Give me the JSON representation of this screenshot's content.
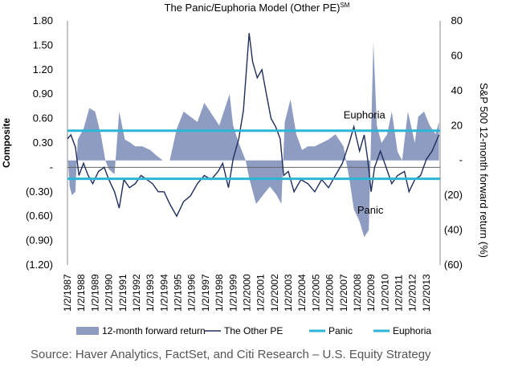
{
  "chart_data": {
    "type": "area+line",
    "title": "The Panic/Euphoria Model (Other PE)",
    "title_superscript": "SM",
    "left_axis": {
      "label": "Composite",
      "range": [
        -1.2,
        1.8
      ],
      "ticks": [
        1.8,
        1.5,
        1.2,
        0.9,
        0.6,
        0.3,
        0,
        -0.3,
        -0.6,
        -0.9,
        -1.2
      ],
      "tick_labels": [
        "1.80",
        "1.50",
        "1.20",
        "0.90",
        "0.60",
        "0.30",
        "-",
        "(0.30)",
        "(0.60)",
        "(0.90)",
        "(1.20)"
      ]
    },
    "right_axis": {
      "label": "S&P 500 12-month forward return (%)",
      "range": [
        -60,
        80
      ],
      "ticks": [
        80,
        60,
        40,
        20,
        0,
        -20,
        -40,
        -60
      ],
      "tick_labels": [
        "80",
        "60",
        "40",
        "20",
        "-",
        "(20)",
        "(40)",
        "(60)"
      ]
    },
    "x_axis": {
      "range": [
        "1987-01-02",
        "2013-12-31"
      ],
      "tick_labels": [
        "1/2/1987",
        "1/2/1988",
        "1/2/1989",
        "1/2/1990",
        "1/2/1991",
        "1/2/1992",
        "1/2/1993",
        "1/2/1994",
        "1/2/1995",
        "1/2/1996",
        "1/2/1997",
        "1/2/1998",
        "1/2/1999",
        "1/2/2000",
        "1/2/2001",
        "1/2/2002",
        "1/2/2003",
        "1/2/2004",
        "1/2/2005",
        "1/2/2006",
        "1/2/2007",
        "1/2/2008",
        "1/2/2009",
        "1/2/2010",
        "1/2/2011",
        "1/2/2012",
        "1/2/2013"
      ]
    },
    "panic_level": -0.14,
    "euphoria_level": 0.45,
    "annotations": [
      {
        "text": "Euphoria",
        "x": "2007-01-01",
        "y": 0.6
      },
      {
        "text": "Panic",
        "x": "2008-01-01",
        "y": -0.57
      }
    ],
    "series": [
      {
        "name": "12-month forward return",
        "axis": "right",
        "kind": "area",
        "color": "#8e9cc2",
        "points": [
          [
            "1987-01-01",
            5
          ],
          [
            "1987-03-01",
            -15
          ],
          [
            "1987-05-01",
            -20
          ],
          [
            "1987-08-01",
            -18
          ],
          [
            "1987-10-01",
            12
          ],
          [
            "1988-03-01",
            18
          ],
          [
            "1988-08-01",
            30
          ],
          [
            "1989-01-01",
            28
          ],
          [
            "1989-06-01",
            15
          ],
          [
            "1989-10-01",
            0
          ],
          [
            "1990-01-01",
            -5
          ],
          [
            "1990-06-01",
            -8
          ],
          [
            "1990-10-01",
            28
          ],
          [
            "1991-03-01",
            12
          ],
          [
            "1991-08-01",
            10
          ],
          [
            "1991-12-01",
            8
          ],
          [
            "1992-06-01",
            8
          ],
          [
            "1993-01-01",
            6
          ],
          [
            "1993-06-01",
            3
          ],
          [
            "1993-12-01",
            0
          ],
          [
            "1994-06-01",
            0
          ],
          [
            "1994-12-01",
            18
          ],
          [
            "1995-06-01",
            28
          ],
          [
            "1995-12-01",
            25
          ],
          [
            "1996-06-01",
            22
          ],
          [
            "1996-12-01",
            33
          ],
          [
            "1997-08-01",
            25
          ],
          [
            "1998-01-01",
            20
          ],
          [
            "1998-06-01",
            30
          ],
          [
            "1998-10-01",
            38
          ],
          [
            "1999-01-01",
            20
          ],
          [
            "1999-06-01",
            10
          ],
          [
            "1999-12-01",
            0
          ],
          [
            "2000-03-01",
            -10
          ],
          [
            "2000-09-01",
            -25
          ],
          [
            "2001-03-01",
            -20
          ],
          [
            "2001-09-01",
            -15
          ],
          [
            "2002-03-01",
            -20
          ],
          [
            "2002-07-01",
            -25
          ],
          [
            "2002-10-01",
            22
          ],
          [
            "2003-03-01",
            35
          ],
          [
            "2003-08-01",
            15
          ],
          [
            "2004-01-01",
            6
          ],
          [
            "2004-06-01",
            8
          ],
          [
            "2004-12-01",
            8
          ],
          [
            "2005-06-01",
            10
          ],
          [
            "2005-12-01",
            12
          ],
          [
            "2006-06-01",
            15
          ],
          [
            "2007-01-01",
            8
          ],
          [
            "2007-06-01",
            -10
          ],
          [
            "2007-10-01",
            -28
          ],
          [
            "2008-03-01",
            -35
          ],
          [
            "2008-07-01",
            -44
          ],
          [
            "2008-11-01",
            -40
          ],
          [
            "2009-03-01",
            68
          ],
          [
            "2009-06-01",
            20
          ],
          [
            "2009-10-01",
            10
          ],
          [
            "2010-03-01",
            15
          ],
          [
            "2010-07-01",
            28
          ],
          [
            "2010-12-01",
            5
          ],
          [
            "2011-04-01",
            0
          ],
          [
            "2011-09-01",
            28
          ],
          [
            "2012-03-01",
            10
          ],
          [
            "2012-06-01",
            25
          ],
          [
            "2012-11-01",
            28
          ],
          [
            "2013-04-01",
            20
          ],
          [
            "2013-09-01",
            15
          ],
          [
            "2013-12-01",
            22
          ]
        ]
      },
      {
        "name": "The Other PE",
        "axis": "left",
        "kind": "line",
        "color": "#1f2d5a",
        "points": [
          [
            "1987-01-01",
            0.35
          ],
          [
            "1987-04-01",
            0.4
          ],
          [
            "1987-08-01",
            0.25
          ],
          [
            "1987-11-01",
            -0.1
          ],
          [
            "1988-03-01",
            0.05
          ],
          [
            "1988-07-01",
            -0.1
          ],
          [
            "1988-11-01",
            -0.2
          ],
          [
            "1989-04-01",
            -0.05
          ],
          [
            "1989-09-01",
            0.0
          ],
          [
            "1990-01-01",
            -0.15
          ],
          [
            "1990-06-01",
            -0.3
          ],
          [
            "1990-10-01",
            -0.5
          ],
          [
            "1991-02-01",
            -0.15
          ],
          [
            "1991-07-01",
            -0.25
          ],
          [
            "1991-12-01",
            -0.2
          ],
          [
            "1992-05-01",
            -0.1
          ],
          [
            "1992-10-01",
            -0.15
          ],
          [
            "1993-03-01",
            -0.2
          ],
          [
            "1993-08-01",
            -0.3
          ],
          [
            "1994-01-01",
            -0.3
          ],
          [
            "1994-06-01",
            -0.45
          ],
          [
            "1994-12-01",
            -0.6
          ],
          [
            "1995-06-01",
            -0.42
          ],
          [
            "1995-12-01",
            -0.35
          ],
          [
            "1996-06-01",
            -0.2
          ],
          [
            "1996-12-01",
            -0.1
          ],
          [
            "1997-06-01",
            -0.15
          ],
          [
            "1997-12-01",
            -0.05
          ],
          [
            "1998-04-01",
            0.05
          ],
          [
            "1998-09-01",
            -0.25
          ],
          [
            "1999-01-01",
            0.1
          ],
          [
            "1999-06-01",
            0.35
          ],
          [
            "1999-10-01",
            0.7
          ],
          [
            "2000-03-01",
            1.65
          ],
          [
            "2000-06-01",
            1.3
          ],
          [
            "2000-10-01",
            1.1
          ],
          [
            "2001-02-01",
            1.2
          ],
          [
            "2001-06-01",
            0.9
          ],
          [
            "2001-10-01",
            0.6
          ],
          [
            "2002-02-01",
            0.5
          ],
          [
            "2002-06-01",
            0.35
          ],
          [
            "2002-09-01",
            -0.1
          ],
          [
            "2003-01-01",
            -0.05
          ],
          [
            "2003-06-01",
            -0.3
          ],
          [
            "2003-12-01",
            -0.15
          ],
          [
            "2004-06-01",
            -0.2
          ],
          [
            "2004-12-01",
            -0.3
          ],
          [
            "2005-06-01",
            -0.15
          ],
          [
            "2005-12-01",
            -0.25
          ],
          [
            "2006-06-01",
            -0.1
          ],
          [
            "2006-12-01",
            0.05
          ],
          [
            "2007-06-01",
            0.3
          ],
          [
            "2007-10-01",
            0.5
          ],
          [
            "2008-03-01",
            0.2
          ],
          [
            "2008-07-01",
            0.4
          ],
          [
            "2008-10-01",
            0.1
          ],
          [
            "2009-01-01",
            -0.3
          ],
          [
            "2009-04-01",
            0.0
          ],
          [
            "2009-09-01",
            0.2
          ],
          [
            "2010-02-01",
            0.0
          ],
          [
            "2010-07-01",
            -0.2
          ],
          [
            "2010-12-01",
            -0.1
          ],
          [
            "2011-06-01",
            -0.05
          ],
          [
            "2011-10-01",
            -0.3
          ],
          [
            "2012-03-01",
            -0.15
          ],
          [
            "2012-08-01",
            -0.1
          ],
          [
            "2013-01-01",
            0.1
          ],
          [
            "2013-06-01",
            0.2
          ],
          [
            "2013-12-01",
            0.4
          ]
        ]
      },
      {
        "name": "Panic",
        "kind": "hline",
        "color": "#2bb5d6"
      },
      {
        "name": "Euphoria",
        "kind": "hline",
        "color": "#2bb5d6"
      }
    ],
    "legend": {
      "placement": "bottom",
      "entries": [
        "12-month forward return",
        "The Other PE",
        "Panic",
        "Euphoria"
      ]
    },
    "source": "Source: Haver Analytics, FactSet, and Citi Research – U.S. Equity Strategy"
  }
}
